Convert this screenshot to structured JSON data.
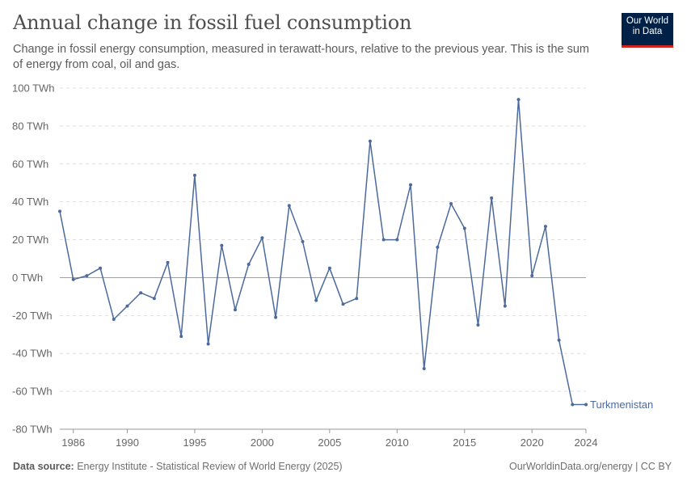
{
  "header": {
    "title": "Annual change in fossil fuel consumption",
    "subtitle": "Change in fossil energy consumption, measured in terawatt-hours, relative to the previous year. This is the sum of energy from coal, oil and gas.",
    "logo_line1": "Our World",
    "logo_line2": "in Data"
  },
  "footer": {
    "source_label": "Data source:",
    "source_text": " Energy Institute - Statistical Review of World Energy (2025)",
    "right_text": "OurWorldinData.org/energy | CC BY"
  },
  "colors": {
    "series": "#4c6a9c",
    "grid": "#dddddd",
    "zero_line": "#a0a0a0",
    "logo_bg": "#002147",
    "logo_accent": "#ce261e"
  },
  "chart_data": {
    "type": "line",
    "title": "Annual change in fossil fuel consumption",
    "xlim": [
      1985,
      2024
    ],
    "ylim": [
      -80,
      100
    ],
    "y_ticks": [
      -80,
      -60,
      -40,
      -20,
      0,
      20,
      40,
      60,
      80,
      100
    ],
    "y_tick_labels": [
      "-80 TWh",
      "-60 TWh",
      "-40 TWh",
      "-20 TWh",
      "0 TWh",
      "20 TWh",
      "40 TWh",
      "60 TWh",
      "80 TWh",
      "100 TWh"
    ],
    "x_ticks": [
      1986,
      1990,
      1995,
      2000,
      2005,
      2010,
      2015,
      2020,
      2024
    ],
    "x_tick_labels": [
      "1986",
      "1990",
      "1995",
      "2000",
      "2005",
      "2010",
      "2015",
      "2020",
      "2024"
    ],
    "grid": "horizontal-dashed",
    "series": [
      {
        "name": "Turkmenistan",
        "x": [
          1985,
          1986,
          1987,
          1988,
          1989,
          1990,
          1991,
          1992,
          1993,
          1994,
          1995,
          1996,
          1997,
          1998,
          1999,
          2000,
          2001,
          2002,
          2003,
          2004,
          2005,
          2006,
          2007,
          2008,
          2009,
          2010,
          2011,
          2012,
          2013,
          2014,
          2015,
          2016,
          2017,
          2018,
          2019,
          2020,
          2021,
          2022,
          2023,
          2024
        ],
        "y": [
          35,
          -1,
          1,
          5,
          -22,
          -15,
          -8,
          -11,
          8,
          -31,
          54,
          -35,
          17,
          -17,
          7,
          21,
          -21,
          38,
          19,
          -12,
          5,
          -14,
          -11,
          72,
          20,
          20,
          49,
          -48,
          16,
          39,
          26,
          -25,
          42,
          -15,
          94,
          1,
          27,
          -33,
          -67,
          -67
        ]
      }
    ]
  }
}
